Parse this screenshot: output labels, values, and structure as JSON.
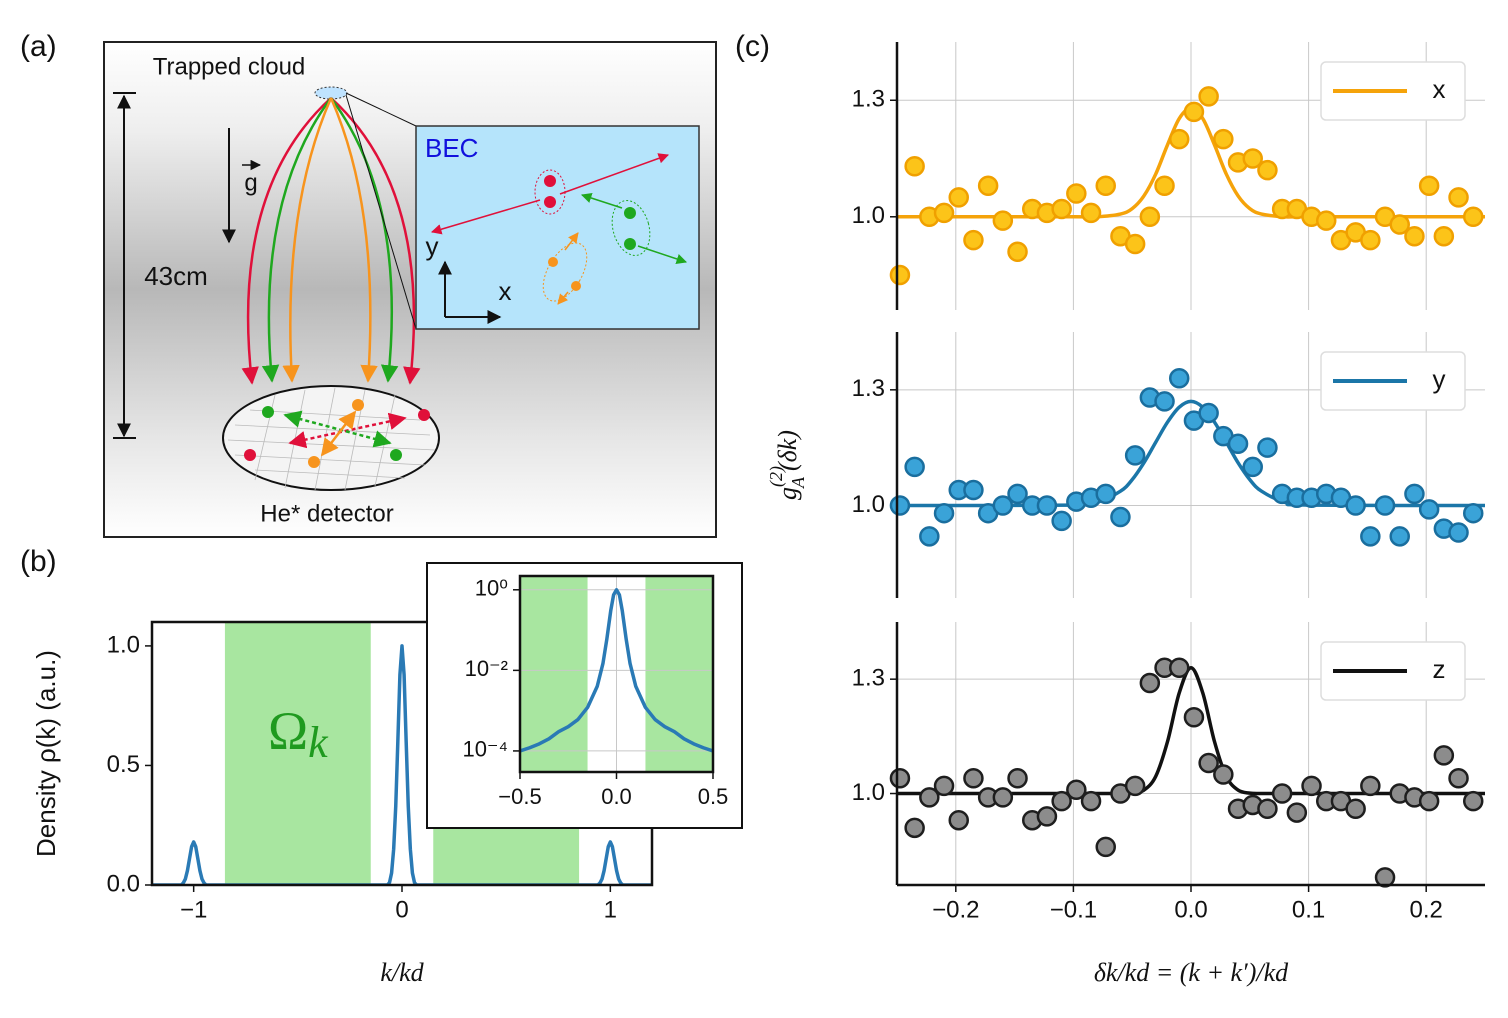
{
  "panel_labels": [
    "(a)",
    "(b)",
    "(c)"
  ],
  "diagram": {
    "cloud_label": "Trapped cloud",
    "height_label": "43cm",
    "gravity_label": "g",
    "inset_title": "BEC",
    "axis_y": "y",
    "axis_x": "x",
    "detector_label": "He* detector"
  },
  "chart_data": [
    {
      "type": "line",
      "color": "#2a7ab5",
      "x": [
        -1.2,
        -1.06,
        -1.05,
        -1.04,
        -1.03,
        -1.02,
        -1.01,
        -1,
        -0.99,
        -0.98,
        -0.97,
        -0.96,
        -0.95,
        -0.94,
        -0.07,
        -0.06,
        -0.05,
        -0.04,
        -0.03,
        -0.02,
        -0.01,
        0,
        0.01,
        0.02,
        0.03,
        0.04,
        0.05,
        0.06,
        0.07,
        0.94,
        0.95,
        0.96,
        0.97,
        0.98,
        0.99,
        1,
        1.01,
        1.02,
        1.03,
        1.04,
        1.05,
        1.06,
        1.2
      ],
      "values": [
        0,
        0,
        0.008,
        0.025,
        0.06,
        0.11,
        0.16,
        0.18,
        0.16,
        0.11,
        0.06,
        0.025,
        0.008,
        0,
        0,
        0.01,
        0.05,
        0.15,
        0.33,
        0.6,
        0.88,
        1.0,
        0.88,
        0.6,
        0.33,
        0.15,
        0.05,
        0.01,
        0,
        0,
        0.008,
        0.025,
        0.06,
        0.11,
        0.16,
        0.18,
        0.16,
        0.11,
        0.06,
        0.025,
        0.008,
        0,
        0
      ],
      "shaded_regions": [
        [
          -0.85,
          -0.15
        ],
        [
          0.15,
          0.85
        ]
      ],
      "shade_color": "#a8e6a0",
      "annotation": {
        "text": "Ω",
        "subscript": "k"
      },
      "xlim": [
        -1.2,
        1.2
      ],
      "ylim": [
        0,
        1.1
      ],
      "xticks": [
        {
          "value": -1,
          "label": "−1"
        },
        0,
        1
      ],
      "yticks": [
        {
          "value": 0,
          "label": "0.0"
        },
        0.5,
        {
          "value": 1,
          "label": "1.0"
        }
      ],
      "xlabel": "k/kd",
      "ylabel": "Density ρ(k) (a.u.)",
      "grid": false
    },
    {
      "type": "line",
      "color": "#2a7ab5",
      "log_scale_y": true,
      "x": [
        -0.5,
        -0.45,
        -0.4,
        -0.35,
        -0.3,
        -0.25,
        -0.2,
        -0.15,
        -0.1,
        -0.07,
        -0.05,
        -0.03,
        -0.015,
        0,
        0.015,
        0.03,
        0.05,
        0.07,
        0.1,
        0.15,
        0.2,
        0.25,
        0.3,
        0.35,
        0.4,
        0.45,
        0.5
      ],
      "values": [
        0.0001,
        0.00012,
        0.00015,
        0.0002,
        0.0003,
        0.0004,
        0.0006,
        0.0012,
        0.004,
        0.015,
        0.06,
        0.3,
        0.75,
        1,
        0.75,
        0.3,
        0.06,
        0.015,
        0.004,
        0.0012,
        0.0006,
        0.0004,
        0.0003,
        0.0002,
        0.00015,
        0.00012,
        0.0001
      ],
      "shaded_regions": [
        [
          -0.5,
          -0.15
        ],
        [
          0.15,
          0.5
        ]
      ],
      "shade_color": "#a8e6a0",
      "xlim": [
        -0.5,
        0.5
      ],
      "ylim": [
        3e-05,
        2.2
      ],
      "xticks": [
        {
          "value": -0.5,
          "label": "−0.5"
        },
        {
          "value": 0,
          "label": "0.0"
        },
        0.5
      ],
      "yticks": [
        {
          "value": 1,
          "label": "10⁰"
        },
        {
          "value": 0.01,
          "label": "10⁻²"
        },
        {
          "value": 0.0001,
          "label": "10⁻⁴"
        }
      ],
      "grid": true
    },
    {
      "type": "scatter",
      "marker_color": "#fcc419",
      "marker_edge": "#f0a000",
      "x": [
        -0.2475,
        -0.235,
        -0.2225,
        -0.21,
        -0.1975,
        -0.185,
        -0.1725,
        -0.16,
        -0.1475,
        -0.135,
        -0.1225,
        -0.11,
        -0.0975,
        -0.085,
        -0.0725,
        -0.06,
        -0.0475,
        -0.035,
        -0.0225,
        -0.01,
        0.0025,
        0.015,
        0.0275,
        0.04,
        0.0525,
        0.065,
        0.0775,
        0.09,
        0.1025,
        0.115,
        0.1275,
        0.14,
        0.1525,
        0.165,
        0.1775,
        0.19,
        0.2025,
        0.215,
        0.2275,
        0.24
      ],
      "values": [
        0.85,
        1.13,
        1.0,
        1.01,
        1.05,
        0.94,
        1.08,
        0.99,
        0.91,
        1.02,
        1.01,
        1.02,
        1.06,
        1.01,
        1.08,
        0.95,
        0.93,
        1.0,
        1.08,
        1.2,
        1.27,
        1.31,
        1.2,
        1.14,
        1.15,
        1.12,
        1.02,
        1.02,
        1.0,
        0.99,
        0.94,
        0.96,
        0.94,
        1.0,
        0.98,
        0.95,
        1.08,
        0.95,
        1.05,
        1.0
      ],
      "series": [
        {
          "name": "x",
          "color": "#f5a30a",
          "x": [
            -0.25,
            -0.1,
            -0.08,
            -0.06,
            -0.05,
            -0.04,
            -0.03,
            -0.02,
            -0.01,
            0,
            0.01,
            0.02,
            0.03,
            0.04,
            0.05,
            0.06,
            0.08,
            0.1,
            0.25
          ],
          "values": [
            1,
            1,
            1,
            1.007,
            1.021,
            1.054,
            1.11,
            1.185,
            1.253,
            1.28,
            1.253,
            1.185,
            1.11,
            1.054,
            1.021,
            1.007,
            1,
            1,
            1
          ]
        }
      ],
      "legend_loc": "upper right",
      "xlim": [
        -0.25,
        0.25
      ],
      "ylim": [
        0.76,
        1.45
      ],
      "xticks": [
        -0.2,
        -0.1,
        0,
        0.1,
        0.2
      ],
      "show_xtick_labels": false,
      "yticks": [
        {
          "value": 1,
          "label": "1.0"
        },
        1.3
      ],
      "grid": true
    },
    {
      "type": "scatter",
      "marker_color": "#3aa3d8",
      "marker_edge": "#1a6e9e",
      "x": [
        -0.2475,
        -0.235,
        -0.2225,
        -0.21,
        -0.1975,
        -0.185,
        -0.1725,
        -0.16,
        -0.1475,
        -0.135,
        -0.1225,
        -0.11,
        -0.0975,
        -0.085,
        -0.0725,
        -0.06,
        -0.0475,
        -0.035,
        -0.0225,
        -0.01,
        0.0025,
        0.015,
        0.0275,
        0.04,
        0.0525,
        0.065,
        0.0775,
        0.09,
        0.1025,
        0.115,
        0.1275,
        0.14,
        0.1525,
        0.165,
        0.1775,
        0.19,
        0.2025,
        0.215,
        0.2275,
        0.24
      ],
      "values": [
        1.0,
        1.1,
        0.92,
        0.98,
        1.04,
        1.04,
        0.98,
        1.0,
        1.03,
        1.0,
        1.0,
        0.96,
        1.01,
        1.02,
        1.03,
        0.97,
        1.13,
        1.28,
        1.27,
        1.33,
        1.22,
        1.24,
        1.18,
        1.16,
        1.1,
        1.15,
        1.03,
        1.02,
        1.02,
        1.03,
        1.02,
        1.0,
        0.92,
        1.0,
        0.92,
        1.03,
        0.99,
        0.94,
        0.93,
        0.98
      ],
      "series": [
        {
          "name": "y",
          "color": "#1b76a8",
          "x": [
            -0.25,
            -0.1,
            -0.08,
            -0.06,
            -0.05,
            -0.04,
            -0.03,
            -0.02,
            -0.01,
            0,
            0.01,
            0.02,
            0.03,
            0.04,
            0.05,
            0.06,
            0.08,
            0.1,
            0.25
          ],
          "values": [
            1,
            1.001,
            1.008,
            1.037,
            1.067,
            1.111,
            1.164,
            1.216,
            1.255,
            1.27,
            1.255,
            1.216,
            1.164,
            1.111,
            1.067,
            1.037,
            1.008,
            1.001,
            1
          ]
        }
      ],
      "legend_loc": "upper right",
      "xlim": [
        -0.25,
        0.25
      ],
      "ylim": [
        0.76,
        1.45
      ],
      "xticks": [
        -0.2,
        -0.1,
        0,
        0.1,
        0.2
      ],
      "show_xtick_labels": false,
      "yticks": [
        {
          "value": 1,
          "label": "1.0"
        },
        1.3
      ],
      "grid": true,
      "ylabel": {
        "symbol": "g",
        "subscript": "A",
        "superscript": "(2)",
        "argument": "(δk)"
      }
    },
    {
      "type": "scatter",
      "marker_color": "#8c8c8c",
      "marker_edge": "#1e1e1e",
      "x": [
        -0.2475,
        -0.235,
        -0.2225,
        -0.21,
        -0.1975,
        -0.185,
        -0.1725,
        -0.16,
        -0.1475,
        -0.135,
        -0.1225,
        -0.11,
        -0.0975,
        -0.085,
        -0.0725,
        -0.06,
        -0.0475,
        -0.035,
        -0.0225,
        -0.01,
        0.0025,
        0.015,
        0.0275,
        0.04,
        0.0525,
        0.065,
        0.0775,
        0.09,
        0.1025,
        0.115,
        0.1275,
        0.14,
        0.1525,
        0.165,
        0.1775,
        0.19,
        0.2025,
        0.215,
        0.2275,
        0.24
      ],
      "values": [
        1.04,
        0.91,
        0.99,
        1.02,
        0.93,
        1.04,
        0.99,
        0.99,
        1.04,
        0.93,
        0.94,
        0.98,
        1.01,
        0.98,
        0.86,
        1.0,
        1.02,
        1.29,
        1.33,
        1.33,
        1.2,
        1.08,
        1.05,
        0.96,
        0.97,
        0.96,
        1.0,
        0.95,
        1.02,
        0.98,
        0.98,
        0.96,
        1.02,
        0.78,
        1.0,
        0.99,
        0.98,
        1.1,
        1.04,
        0.98
      ],
      "series": [
        {
          "name": "z",
          "color": "#111111",
          "x": [
            -0.25,
            -0.1,
            -0.08,
            -0.06,
            -0.05,
            -0.04,
            -0.03,
            -0.02,
            -0.01,
            0,
            0.01,
            0.02,
            0.03,
            0.04,
            0.05,
            0.06,
            0.08,
            0.1,
            0.25
          ],
          "values": [
            1,
            1,
            1,
            1,
            1.001,
            1.009,
            1.045,
            1.136,
            1.264,
            1.33,
            1.264,
            1.136,
            1.045,
            1.009,
            1.001,
            1,
            1,
            1,
            1
          ]
        }
      ],
      "legend_loc": "upper right",
      "xlim": [
        -0.25,
        0.25
      ],
      "ylim": [
        0.76,
        1.45
      ],
      "xticks": [
        {
          "value": -0.2,
          "label": "−0.2"
        },
        {
          "value": -0.1,
          "label": "−0.1"
        },
        {
          "value": 0,
          "label": "0.0"
        },
        0.1,
        0.2
      ],
      "yticks": [
        {
          "value": 1,
          "label": "1.0"
        },
        1.3
      ],
      "grid": true,
      "xlabel": "δk/kd = (k + k′)/kd"
    }
  ]
}
